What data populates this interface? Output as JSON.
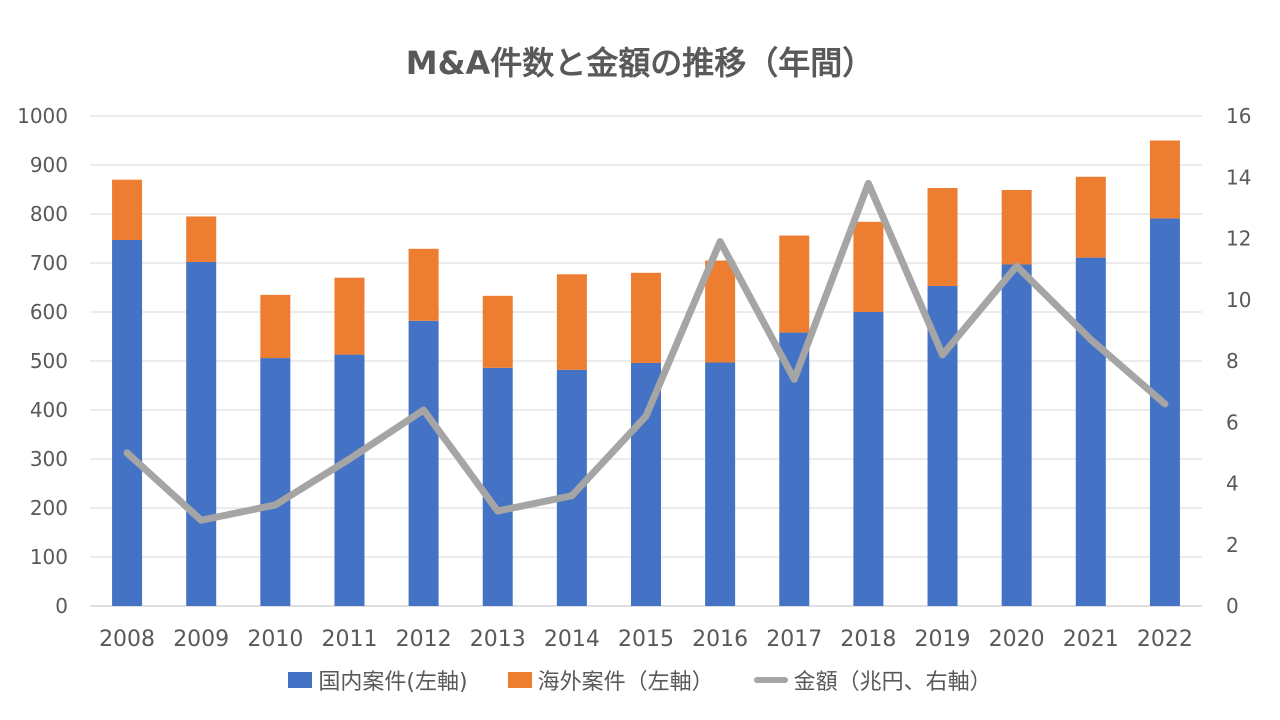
{
  "chart_data": {
    "type": "bar",
    "title": "M&A件数と金額の推移（年間）",
    "categories": [
      "2008",
      "2009",
      "2010",
      "2011",
      "2012",
      "2013",
      "2014",
      "2015",
      "2016",
      "2017",
      "2018",
      "2019",
      "2020",
      "2021",
      "2022"
    ],
    "series": [
      {
        "name": "国内案件(左軸)",
        "kind": "stacked-bar",
        "axis": "left",
        "color": "#4472C4",
        "values": [
          747,
          702,
          506,
          513,
          582,
          486,
          482,
          496,
          497,
          558,
          600,
          653,
          697,
          711,
          791
        ]
      },
      {
        "name": "海外案件（左軸）",
        "kind": "stacked-bar",
        "axis": "left",
        "color": "#ED7D31",
        "values": [
          123,
          93,
          129,
          157,
          147,
          147,
          195,
          184,
          208,
          198,
          184,
          200,
          152,
          165,
          159
        ]
      },
      {
        "name": "金額（兆円、右軸）",
        "kind": "line",
        "axis": "right",
        "color": "#A5A5A5",
        "values": [
          5.0,
          2.8,
          3.3,
          4.8,
          6.4,
          3.1,
          3.6,
          6.2,
          11.9,
          7.4,
          13.8,
          8.2,
          11.1,
          8.7,
          6.6
        ]
      }
    ],
    "y_left": {
      "min": 0,
      "max": 1000,
      "step": 100,
      "ticks": [
        "0",
        "100",
        "200",
        "300",
        "400",
        "500",
        "600",
        "700",
        "800",
        "900",
        "1000"
      ]
    },
    "y_right": {
      "min": 0,
      "max": 16,
      "step": 2,
      "ticks": [
        "0",
        "2",
        "4",
        "6",
        "8",
        "10",
        "12",
        "14",
        "16"
      ]
    },
    "grid": true,
    "legend_position": "bottom"
  }
}
